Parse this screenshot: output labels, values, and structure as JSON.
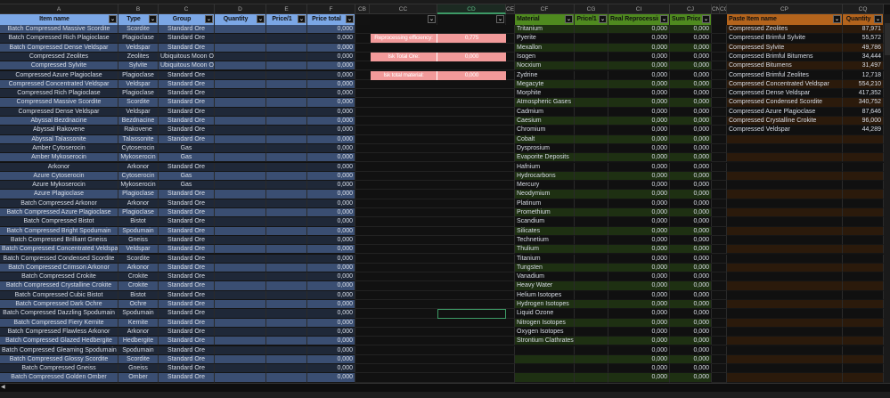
{
  "column_letters": [
    "A",
    "B",
    "C",
    "D",
    "E",
    "F",
    "CB",
    "CC",
    "CD",
    "CE",
    "CF",
    "CG",
    "CI",
    "CJ",
    "CN",
    "CO",
    "CP",
    "CQ"
  ],
  "selected_column": "CD",
  "left_table": {
    "headers": [
      "Item name",
      "Type",
      "Group",
      "Quantity",
      "Price/1",
      "Price total"
    ],
    "rows": [
      [
        "Batch Compressed Massive Scordite",
        "Scordite",
        "Standard Ore",
        "",
        "",
        "0,000"
      ],
      [
        "Batch Compressed Rich Plagioclase",
        "Plagioclase",
        "Standard Ore",
        "",
        "",
        "0,000"
      ],
      [
        "Batch Compressed Dense Veldspar",
        "Veldspar",
        "Standard Ore",
        "",
        "",
        "0,000"
      ],
      [
        "Compressed Zeolites",
        "Zeolites",
        "Ubiquitous Moon Ore",
        "",
        "",
        "0,000"
      ],
      [
        "Compressed Sylvite",
        "Sylvite",
        "Ubiquitous Moon Ore",
        "",
        "",
        "0,000"
      ],
      [
        "Compressed Azure Plagioclase",
        "Plagioclase",
        "Standard Ore",
        "",
        "",
        "0,000"
      ],
      [
        "Compressed Concentrated Veldspar",
        "Veldspar",
        "Standard Ore",
        "",
        "",
        "0,000"
      ],
      [
        "Compressed Rich Plagioclase",
        "Plagioclase",
        "Standard Ore",
        "",
        "",
        "0,000"
      ],
      [
        "Compressed Massive Scordite",
        "Scordite",
        "Standard Ore",
        "",
        "",
        "0,000"
      ],
      [
        "Compressed Dense Veldspar",
        "Veldspar",
        "Standard Ore",
        "",
        "",
        "0,000"
      ],
      [
        "Abyssal Bezdnacine",
        "Bezdnacine",
        "Standard Ore",
        "",
        "",
        "0,000"
      ],
      [
        "Abyssal Rakovene",
        "Rakovene",
        "Standard Ore",
        "",
        "",
        "0,000"
      ],
      [
        "Abyssal Talassonite",
        "Talassonite",
        "Standard Ore",
        "",
        "",
        "0,000"
      ],
      [
        "Amber Cytoserocin",
        "Cytoserocin",
        "Gas",
        "",
        "",
        "0,000"
      ],
      [
        "Amber Mykoserocin",
        "Mykoserocin",
        "Gas",
        "",
        "",
        "0,000"
      ],
      [
        "Arkonor",
        "Arkonor",
        "Standard Ore",
        "",
        "",
        "0,000"
      ],
      [
        "Azure Cytoserocin",
        "Cytoserocin",
        "Gas",
        "",
        "",
        "0,000"
      ],
      [
        "Azure Mykoserocin",
        "Mykoserocin",
        "Gas",
        "",
        "",
        "0,000"
      ],
      [
        "Azure Plagioclase",
        "Plagioclase",
        "Standard Ore",
        "",
        "",
        "0,000"
      ],
      [
        "Batch Compressed Arkonor",
        "Arkonor",
        "Standard Ore",
        "",
        "",
        "0,000"
      ],
      [
        "Batch Compressed Azure Plagioclase",
        "Plagioclase",
        "Standard Ore",
        "",
        "",
        "0,000"
      ],
      [
        "Batch Compressed Bistot",
        "Bistot",
        "Standard Ore",
        "",
        "",
        "0,000"
      ],
      [
        "Batch Compressed Bright Spodumain",
        "Spodumain",
        "Standard Ore",
        "",
        "",
        "0,000"
      ],
      [
        "Batch Compressed Brilliant Gneiss",
        "Gneiss",
        "Standard Ore",
        "",
        "",
        "0,000"
      ],
      [
        "Batch Compressed Concentrated Veldspar",
        "Veldspar",
        "Standard Ore",
        "",
        "",
        "0,000"
      ],
      [
        "Batch Compressed Condensed Scordite",
        "Scordite",
        "Standard Ore",
        "",
        "",
        "0,000"
      ],
      [
        "Batch Compressed Crimson Arkonor",
        "Arkonor",
        "Standard Ore",
        "",
        "",
        "0,000"
      ],
      [
        "Batch Compressed Crokite",
        "Crokite",
        "Standard Ore",
        "",
        "",
        "0,000"
      ],
      [
        "Batch Compressed Crystalline Crokite",
        "Crokite",
        "Standard Ore",
        "",
        "",
        "0,000"
      ],
      [
        "Batch Compressed Cubic Bistot",
        "Bistot",
        "Standard Ore",
        "",
        "",
        "0,000"
      ],
      [
        "Batch Compressed Dark Ochre",
        "Ochre",
        "Standard Ore",
        "",
        "",
        "0,000"
      ],
      [
        "Batch Compressed Dazzling Spodumain",
        "Spodumain",
        "Standard Ore",
        "",
        "",
        "0,000"
      ],
      [
        "Batch Compressed Fiery Kernite",
        "Kernite",
        "Standard Ore",
        "",
        "",
        "0,000"
      ],
      [
        "Batch Compressed Flawless Arkonor",
        "Arkonor",
        "Standard Ore",
        "",
        "",
        "0,000"
      ],
      [
        "Batch Compressed Glazed Hedbergite",
        "Hedbergite",
        "Standard Ore",
        "",
        "",
        "0,000"
      ],
      [
        "Batch Compressed Gleaming Spodumain",
        "Spodumain",
        "Standard Ore",
        "",
        "",
        "0,000"
      ],
      [
        "Batch Compressed Glossy Scordite",
        "Scordite",
        "Standard Ore",
        "",
        "",
        "0,000"
      ],
      [
        "Batch Compressed Gneiss",
        "Gneiss",
        "Standard Ore",
        "",
        "",
        "0,000"
      ],
      [
        "Batch Compressed Golden Omber",
        "Omber",
        "Standard Ore",
        "",
        "",
        "0,000"
      ]
    ]
  },
  "summary": [
    {
      "label": "Reprocessing efficiency:",
      "value": "0,775"
    },
    {
      "label": "Isk Total Ore:",
      "value": "0,000"
    },
    {
      "label": "Isk total material:",
      "value": "0,000"
    }
  ],
  "material_table": {
    "headers": [
      "Material",
      "Price/1",
      "Real Reprocessing",
      "Sum Price"
    ],
    "rows": [
      [
        "Tritanium",
        "",
        "0,000",
        "0,000"
      ],
      [
        "Pyerite",
        "",
        "0,000",
        "0,000"
      ],
      [
        "Mexallon",
        "",
        "0,000",
        "0,000"
      ],
      [
        "Isogen",
        "",
        "0,000",
        "0,000"
      ],
      [
        "Nocxium",
        "",
        "0,000",
        "0,000"
      ],
      [
        "Zydrine",
        "",
        "0,000",
        "0,000"
      ],
      [
        "Megacyte",
        "",
        "0,000",
        "0,000"
      ],
      [
        "Morphite",
        "",
        "0,000",
        "0,000"
      ],
      [
        "Atmospheric Gases",
        "",
        "0,000",
        "0,000"
      ],
      [
        "Cadmium",
        "",
        "0,000",
        "0,000"
      ],
      [
        "Caesium",
        "",
        "0,000",
        "0,000"
      ],
      [
        "Chromium",
        "",
        "0,000",
        "0,000"
      ],
      [
        "Cobalt",
        "",
        "0,000",
        "0,000"
      ],
      [
        "Dysprosium",
        "",
        "0,000",
        "0,000"
      ],
      [
        "Evaporite Deposits",
        "",
        "0,000",
        "0,000"
      ],
      [
        "Hafnium",
        "",
        "0,000",
        "0,000"
      ],
      [
        "Hydrocarbons",
        "",
        "0,000",
        "0,000"
      ],
      [
        "Mercury",
        "",
        "0,000",
        "0,000"
      ],
      [
        "Neodymium",
        "",
        "0,000",
        "0,000"
      ],
      [
        "Platinum",
        "",
        "0,000",
        "0,000"
      ],
      [
        "Promethium",
        "",
        "0,000",
        "0,000"
      ],
      [
        "Scandium",
        "",
        "0,000",
        "0,000"
      ],
      [
        "Silicates",
        "",
        "0,000",
        "0,000"
      ],
      [
        "Technetium",
        "",
        "0,000",
        "0,000"
      ],
      [
        "Thulium",
        "",
        "0,000",
        "0,000"
      ],
      [
        "Titanium",
        "",
        "0,000",
        "0,000"
      ],
      [
        "Tungsten",
        "",
        "0,000",
        "0,000"
      ],
      [
        "Vanadium",
        "",
        "0,000",
        "0,000"
      ],
      [
        "Heavy Water",
        "",
        "0,000",
        "0,000"
      ],
      [
        "Helium Isotopes",
        "",
        "0,000",
        "0,000"
      ],
      [
        "Hydrogen Isotopes",
        "",
        "0,000",
        "0,000"
      ],
      [
        "Liquid Ozone",
        "",
        "0,000",
        "0,000"
      ],
      [
        "Nitrogen Isotopes",
        "",
        "0,000",
        "0,000"
      ],
      [
        "Oxygen Isotopes",
        "",
        "0,000",
        "0,000"
      ],
      [
        "Strontium Clathrates",
        "",
        "0,000",
        "0,000"
      ],
      [
        "",
        "",
        "0,000",
        "0,000"
      ],
      [
        "",
        "",
        "0,000",
        "0,000"
      ],
      [
        "",
        "",
        "0,000",
        "0,000"
      ],
      [
        "",
        "",
        "0,000",
        "0,000"
      ]
    ]
  },
  "paste_table": {
    "headers": [
      "Paste Item name",
      "Quantity"
    ],
    "rows": [
      [
        "Compressed Zeolites",
        "87,971"
      ],
      [
        "Compressed Brimful Sylvite",
        "55,572"
      ],
      [
        "Compressed Sylvite",
        "49,786"
      ],
      [
        "Compressed Brimful Bitumens",
        "34,444"
      ],
      [
        "Compressed Bitumens",
        "31,497"
      ],
      [
        "Compressed Brimful Zeolites",
        "12,718"
      ],
      [
        "Compressed Concentrated Veldspar",
        "554,210"
      ],
      [
        "Compressed Dense Veldspar",
        "417,352"
      ],
      [
        "Compressed Condensed Scordite",
        "340,752"
      ],
      [
        "Compressed Azure Plagioclase",
        "87,646"
      ],
      [
        "Compressed Crystalline Crokite",
        "96,000"
      ],
      [
        "Compressed Veldspar",
        "44,289"
      ]
    ]
  },
  "colors": {
    "blue_header": "#7ba7e6",
    "blue_row_a": "#3a4e72",
    "blue_row_b": "#1f2838",
    "green_header": "#4f8a1f",
    "green_row_a": "#1e3012",
    "orange_header": "#b4641c",
    "orange_row_a": "#2b1a0b",
    "row_dark": "#101010",
    "pink": "#f29a9a"
  }
}
